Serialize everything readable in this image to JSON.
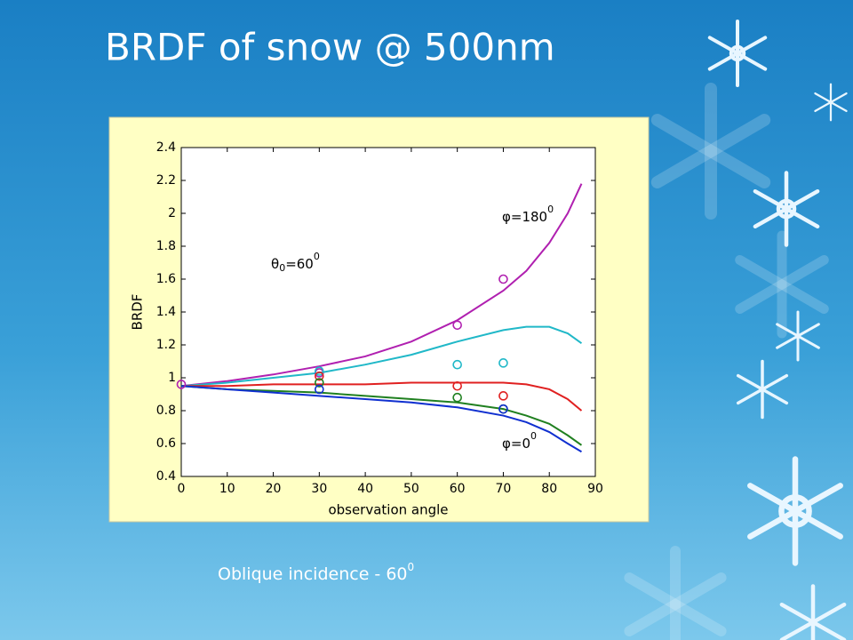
{
  "slide": {
    "title": "BRDF of snow @ 500nm",
    "caption": {
      "text": "Oblique incidence - 60",
      "sup": "0"
    }
  },
  "chart_data": {
    "type": "line",
    "x_label": "observation angle",
    "y_label": "BRDF",
    "xlim": [
      0,
      90
    ],
    "xticks": [
      0,
      10,
      20,
      30,
      40,
      50,
      60,
      70,
      80,
      90
    ],
    "ylim": [
      0.4,
      2.4
    ],
    "yticks": [
      0.4,
      0.6,
      0.8,
      1,
      1.2,
      1.4,
      1.6,
      1.8,
      2,
      2.2,
      2.4
    ],
    "annotations": [
      {
        "text": "φ=180",
        "sup": "0"
      },
      {
        "text": "θ",
        "sub": "0",
        "text2": "=60",
        "sup": "0"
      },
      {
        "text": "φ=0",
        "sup": "0"
      }
    ],
    "series": [
      {
        "color": "#b020b0",
        "x": [
          0,
          10,
          20,
          30,
          40,
          50,
          60,
          70,
          75,
          80,
          84,
          87
        ],
        "values": [
          0.95,
          0.98,
          1.02,
          1.07,
          1.13,
          1.22,
          1.35,
          1.53,
          1.65,
          1.82,
          2.0,
          2.18
        ]
      },
      {
        "color": "#20b8c8",
        "x": [
          0,
          10,
          20,
          30,
          40,
          50,
          60,
          70,
          75,
          80,
          84,
          87
        ],
        "values": [
          0.95,
          0.97,
          1.0,
          1.03,
          1.08,
          1.14,
          1.22,
          1.29,
          1.31,
          1.31,
          1.27,
          1.21
        ]
      },
      {
        "color": "#e02020",
        "x": [
          0,
          10,
          20,
          30,
          40,
          50,
          60,
          70,
          75,
          80,
          84,
          87
        ],
        "values": [
          0.95,
          0.95,
          0.96,
          0.96,
          0.96,
          0.97,
          0.97,
          0.97,
          0.96,
          0.93,
          0.87,
          0.8
        ]
      },
      {
        "color": "#208020",
        "x": [
          0,
          10,
          20,
          30,
          40,
          50,
          60,
          70,
          75,
          80,
          84,
          87
        ],
        "values": [
          0.95,
          0.93,
          0.92,
          0.91,
          0.89,
          0.87,
          0.85,
          0.81,
          0.77,
          0.72,
          0.65,
          0.59
        ]
      },
      {
        "color": "#1030d0",
        "x": [
          0,
          10,
          20,
          30,
          40,
          50,
          60,
          70,
          75,
          80,
          84,
          87
        ],
        "values": [
          0.95,
          0.93,
          0.91,
          0.89,
          0.87,
          0.85,
          0.82,
          0.77,
          0.73,
          0.67,
          0.6,
          0.55
        ]
      }
    ],
    "measured": [
      {
        "color": "#b020b0",
        "x": [
          0,
          30,
          60,
          70
        ],
        "values": [
          0.96,
          1.03,
          1.32,
          1.6
        ]
      },
      {
        "color": "#20b8c8",
        "x": [
          30,
          60,
          70
        ],
        "values": [
          1.04,
          1.08,
          1.09
        ]
      },
      {
        "color": "#e02020",
        "x": [
          30,
          60,
          70
        ],
        "values": [
          1.01,
          0.95,
          0.89
        ]
      },
      {
        "color": "#208020",
        "x": [
          30,
          60,
          70
        ],
        "values": [
          0.97,
          0.88,
          0.81
        ]
      },
      {
        "color": "#1030d0",
        "x": [
          30,
          70
        ],
        "values": [
          0.93,
          0.81
        ]
      }
    ]
  }
}
